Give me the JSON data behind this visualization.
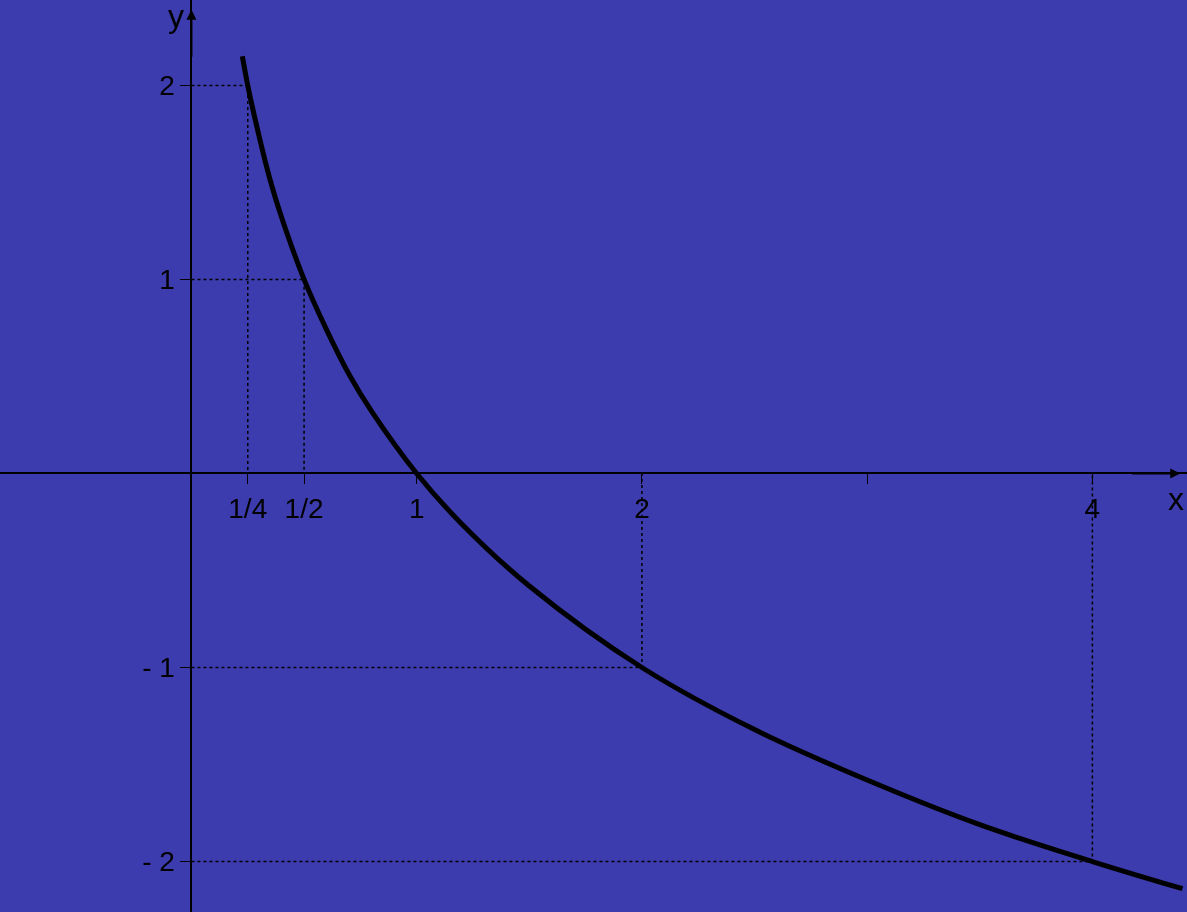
{
  "chart_data": {
    "type": "line",
    "xlabel": "x",
    "ylabel": "y",
    "xlim": [
      -0.85,
      4.42
    ],
    "ylim": [
      -2.26,
      2.44
    ],
    "xticks": [
      {
        "value": 0.25,
        "label": "1/4"
      },
      {
        "value": 0.5,
        "label": "1/2"
      },
      1,
      2,
      {
        "value": 3,
        "label": null
      },
      4
    ],
    "yticks": [
      -2,
      -1,
      1,
      2
    ],
    "grid": false,
    "marker": "none",
    "series": [
      {
        "color": "#000000",
        "line_style": "solid",
        "x": [
          0.226,
          0.25,
          0.3,
          0.35,
          0.4,
          0.5,
          0.6,
          0.7,
          0.8,
          1,
          1.2,
          1.5,
          2,
          2.5,
          3,
          3.5,
          4,
          4.4
        ],
        "values": [
          2.15,
          2,
          1.74,
          1.51,
          1.32,
          1,
          0.74,
          0.51,
          0.32,
          0,
          -0.26,
          -0.58,
          -1,
          -1.32,
          -1.58,
          -1.81,
          -2,
          -2.14
        ]
      },
      {
        "color": "#000000",
        "line_style": "dotted",
        "x": [
          0,
          0.25,
          0.25,
          null,
          0,
          0.5,
          0.5,
          null,
          0,
          2,
          2,
          null,
          0,
          4,
          4
        ],
        "values": [
          2,
          2,
          0,
          null,
          1,
          1,
          0,
          null,
          -1,
          -1,
          0,
          null,
          -2,
          -2,
          0
        ]
      }
    ]
  }
}
